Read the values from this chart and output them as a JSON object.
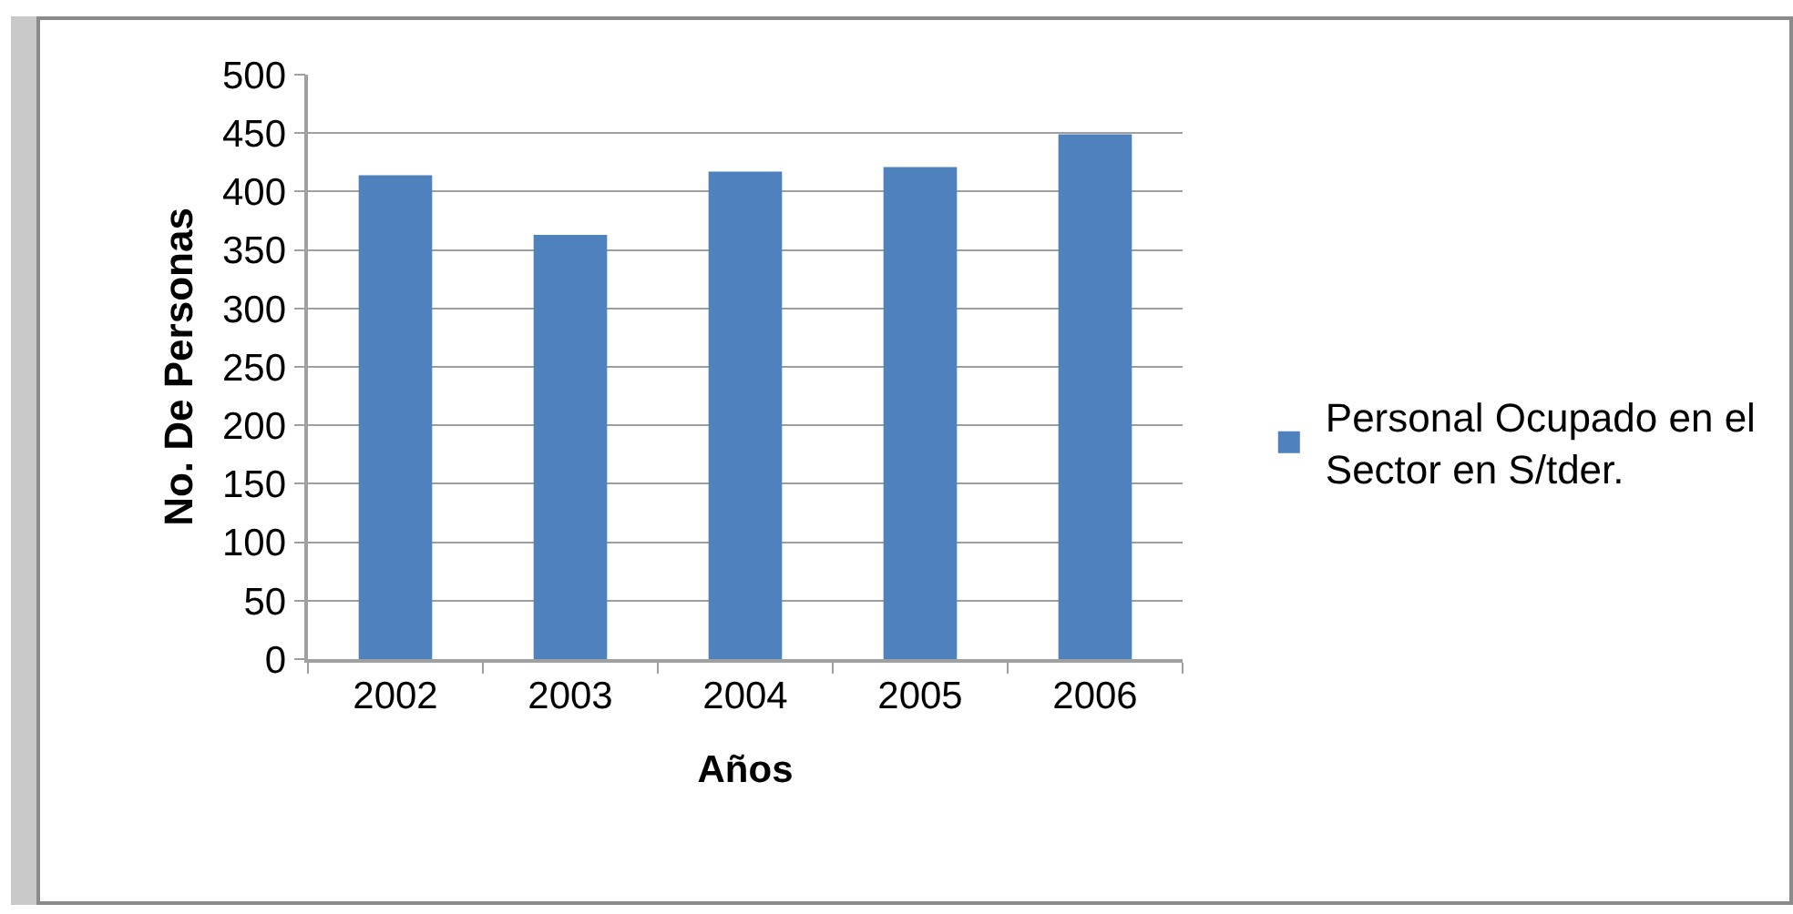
{
  "chart_data": {
    "type": "bar",
    "xlabel": "Años",
    "ylabel": "No. De Personas",
    "categories": [
      "2002",
      "2003",
      "2004",
      "2005",
      "2006"
    ],
    "series": [
      {
        "name": "Personal Ocupado en el Sector en S/tder.",
        "color": "#4f81bd",
        "values": [
          414,
          363,
          417,
          421,
          449
        ]
      }
    ],
    "ylim": [
      0,
      500
    ],
    "yticks": [
      0,
      50,
      100,
      150,
      200,
      250,
      300,
      350,
      400,
      450,
      500
    ],
    "grid": "y",
    "legend": "right"
  }
}
